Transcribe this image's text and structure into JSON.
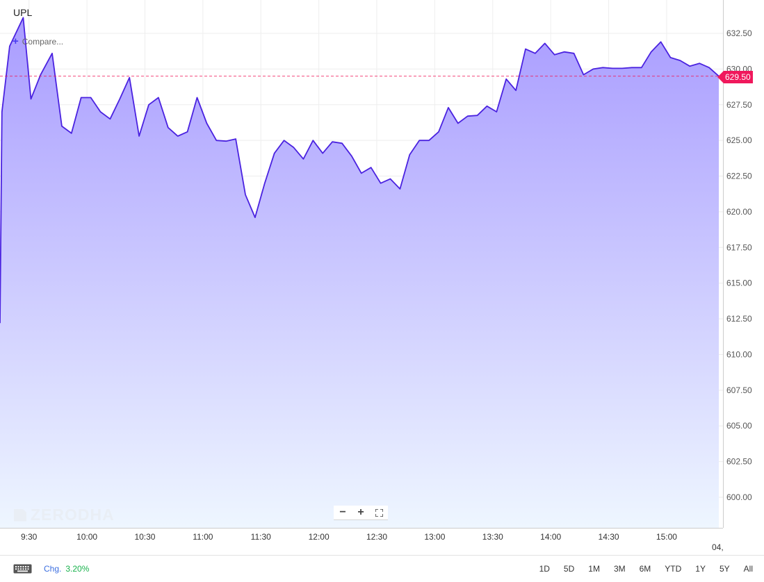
{
  "header": {
    "symbol": "UPL",
    "compare_label": "Compare..."
  },
  "last_price_label": "629.50",
  "watermark": "ZERODHA",
  "zoom": {
    "out_icon": "minus-icon",
    "in_icon": "plus-icon",
    "fullscreen_icon": "fullscreen-icon"
  },
  "footer": {
    "keyboard_icon": "keyboard-icon",
    "change_label": "Chg.",
    "change_value": "3.20%",
    "ranges": [
      "1D",
      "5D",
      "1M",
      "3M",
      "6M",
      "YTD",
      "1Y",
      "5Y",
      "All"
    ]
  },
  "x_overflow_label": "04,",
  "colors": {
    "line": "#4a22e0",
    "fill_top": "#a99cff",
    "fill_bottom": "#eef6ff",
    "price_tag": "#f0185c",
    "positive": "#18b24c",
    "link": "#3c6fe0"
  },
  "chart_data": {
    "type": "area",
    "title": "UPL",
    "xlabel": "",
    "ylabel": "",
    "x_ticks": [
      "9:30",
      "10:00",
      "10:30",
      "11:00",
      "11:30",
      "12:00",
      "12:30",
      "13:00",
      "13:30",
      "14:00",
      "14:30",
      "15:00"
    ],
    "y_ticks": [
      600.0,
      602.5,
      605.0,
      607.5,
      610.0,
      612.5,
      615.0,
      617.5,
      620.0,
      622.5,
      625.0,
      627.5,
      630.0,
      632.5
    ],
    "ylim": [
      598.0,
      635.0
    ],
    "xlim": [
      "9:15",
      "15:27"
    ],
    "grid": true,
    "last_value": 629.5,
    "series": [
      {
        "values": [
          [
            "9:15",
            612.2
          ],
          [
            "9:16",
            627.0
          ],
          [
            "9:20",
            631.6
          ],
          [
            "9:27",
            633.6
          ],
          [
            "9:31",
            627.9
          ],
          [
            "9:36",
            629.6
          ],
          [
            "9:42",
            631.1
          ],
          [
            "9:47",
            626.0
          ],
          [
            "9:52",
            625.5
          ],
          [
            "9:57",
            628.0
          ],
          [
            "10:02",
            628.0
          ],
          [
            "10:07",
            627.0
          ],
          [
            "10:12",
            626.5
          ],
          [
            "10:17",
            627.9
          ],
          [
            "10:22",
            629.4
          ],
          [
            "10:27",
            625.3
          ],
          [
            "10:32",
            627.5
          ],
          [
            "10:37",
            628.0
          ],
          [
            "10:42",
            625.9
          ],
          [
            "10:47",
            625.3
          ],
          [
            "10:52",
            625.6
          ],
          [
            "10:57",
            628.0
          ],
          [
            "11:02",
            626.2
          ],
          [
            "11:07",
            625.0
          ],
          [
            "11:12",
            624.95
          ],
          [
            "11:17",
            625.1
          ],
          [
            "11:22",
            621.2
          ],
          [
            "11:27",
            619.6
          ],
          [
            "11:32",
            622.0
          ],
          [
            "11:37",
            624.1
          ],
          [
            "11:42",
            625.0
          ],
          [
            "11:47",
            624.5
          ],
          [
            "11:52",
            623.7
          ],
          [
            "11:57",
            625.0
          ],
          [
            "12:02",
            624.1
          ],
          [
            "12:07",
            624.9
          ],
          [
            "12:12",
            624.8
          ],
          [
            "12:17",
            623.9
          ],
          [
            "12:22",
            622.7
          ],
          [
            "12:27",
            623.1
          ],
          [
            "12:32",
            622.0
          ],
          [
            "12:37",
            622.3
          ],
          [
            "12:42",
            621.6
          ],
          [
            "12:47",
            624.0
          ],
          [
            "12:52",
            625.0
          ],
          [
            "12:57",
            625.0
          ],
          [
            "13:02",
            625.6
          ],
          [
            "13:07",
            627.3
          ],
          [
            "13:12",
            626.2
          ],
          [
            "13:17",
            626.7
          ],
          [
            "13:22",
            626.75
          ],
          [
            "13:27",
            627.4
          ],
          [
            "13:32",
            627.0
          ],
          [
            "13:37",
            629.3
          ],
          [
            "13:42",
            628.5
          ],
          [
            "13:47",
            631.4
          ],
          [
            "13:52",
            631.1
          ],
          [
            "13:57",
            631.8
          ],
          [
            "14:02",
            631.0
          ],
          [
            "14:07",
            631.2
          ],
          [
            "14:12",
            631.1
          ],
          [
            "14:17",
            629.6
          ],
          [
            "14:22",
            630.0
          ],
          [
            "14:27",
            630.1
          ],
          [
            "14:32",
            630.05
          ],
          [
            "14:37",
            630.05
          ],
          [
            "14:42",
            630.1
          ],
          [
            "14:47",
            630.1
          ],
          [
            "14:52",
            631.2
          ],
          [
            "14:57",
            631.9
          ],
          [
            "15:02",
            630.8
          ],
          [
            "15:07",
            630.6
          ],
          [
            "15:12",
            630.2
          ],
          [
            "15:17",
            630.4
          ],
          [
            "15:22",
            630.1
          ],
          [
            "15:27",
            629.5
          ]
        ]
      }
    ]
  }
}
